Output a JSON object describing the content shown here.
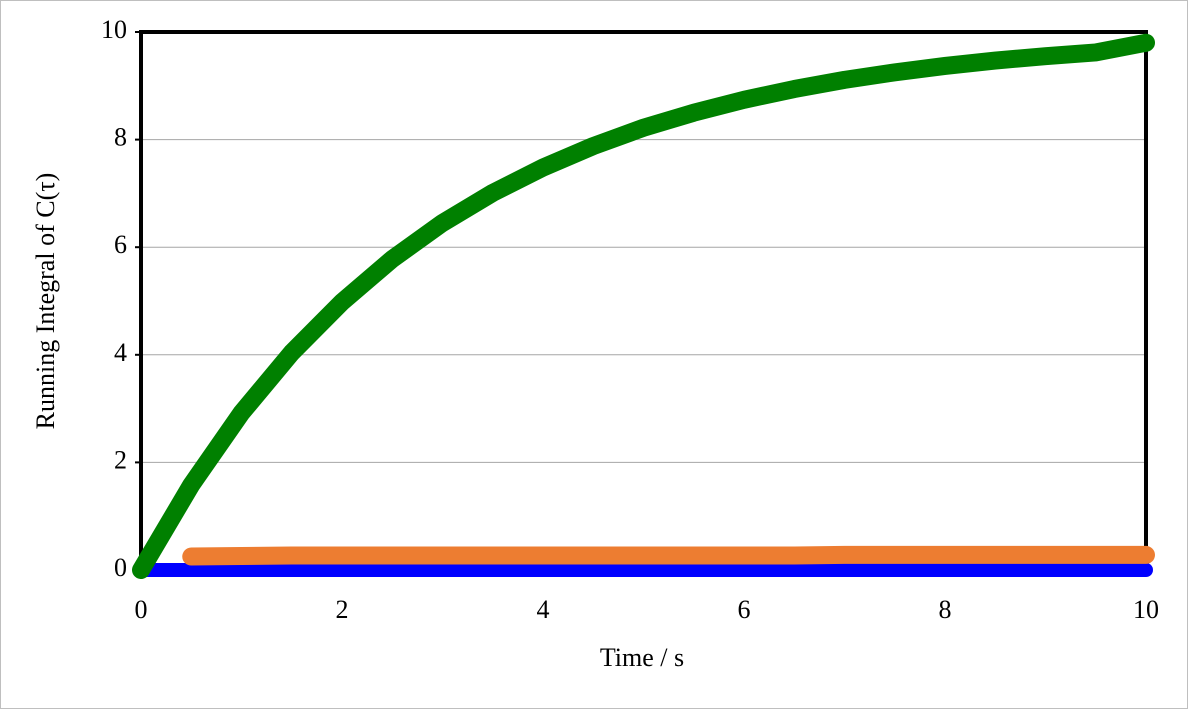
{
  "chart_data": {
    "type": "line",
    "x_label": "Time / s",
    "y_label": "Running Integral of C(τ)",
    "x": [
      0,
      0.5,
      1,
      1.5,
      2,
      2.5,
      3,
      3.5,
      4,
      4.5,
      5,
      5.5,
      6,
      6.5,
      7,
      7.5,
      8,
      8.5,
      9,
      9.5,
      10
    ],
    "series": [
      {
        "color": "#0000ff",
        "values": [
          0,
          0,
          0,
          0,
          0,
          0,
          0,
          0,
          0,
          0,
          0,
          0,
          0,
          0,
          0,
          0,
          0,
          0,
          0,
          0,
          0
        ]
      },
      {
        "color": "#ed7d31",
        "values": [
          null,
          0.25,
          0.26,
          0.27,
          0.27,
          0.27,
          0.27,
          0.27,
          0.27,
          0.27,
          0.27,
          0.27,
          0.27,
          0.27,
          0.28,
          0.28,
          0.28,
          0.28,
          0.28,
          0.28,
          0.28
        ]
      },
      {
        "color": "#008000",
        "values": [
          0,
          1.58,
          2.92,
          4.04,
          4.98,
          5.78,
          6.45,
          7.01,
          7.48,
          7.88,
          8.22,
          8.5,
          8.74,
          8.94,
          9.11,
          9.25,
          9.37,
          9.47,
          9.55,
          9.62,
          9.8
        ]
      }
    ],
    "xlim": [
      0,
      10
    ],
    "xticks": [
      0,
      2,
      4,
      6,
      8,
      10
    ],
    "ylim": [
      0,
      10
    ],
    "yticks": [
      0,
      2,
      4,
      6,
      8,
      10
    ],
    "grid": true
  }
}
